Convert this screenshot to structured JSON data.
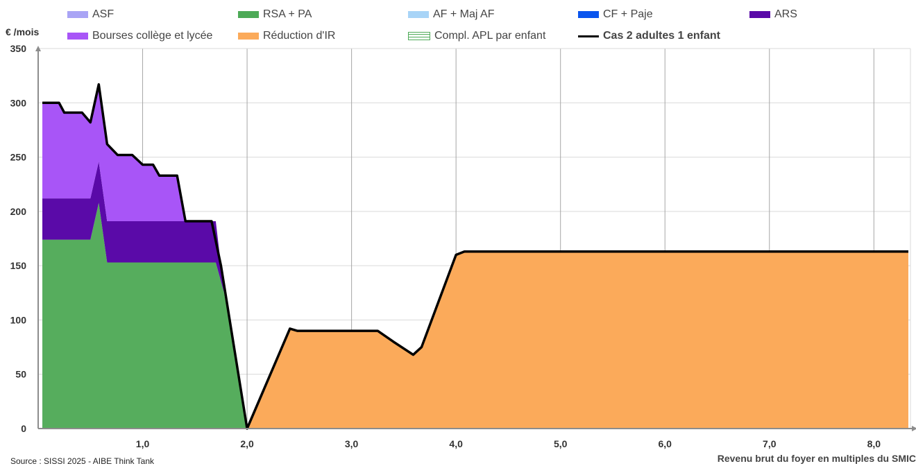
{
  "chart_data": {
    "type": "area",
    "ylabel": "€ /mois",
    "xlabel": "Revenu brut du foyer en multiples du SMIC",
    "source": "Source : SISSI 2025 - AIBE Think Tank",
    "ylim": [
      0,
      350
    ],
    "xlim": [
      0,
      8.35
    ],
    "y_ticks": [
      "0",
      "50",
      "100",
      "150",
      "200",
      "250",
      "300",
      "350"
    ],
    "x_ticks": [
      "1,0",
      "2,0",
      "3,0",
      "4,0",
      "5,0",
      "6,0",
      "7,0",
      "8,0"
    ],
    "grid": true,
    "legend_position": "top",
    "legend": [
      {
        "name": "ASF",
        "color": "#a9a4f5",
        "style": "swatch"
      },
      {
        "name": "RSA + PA",
        "color": "#4daa57",
        "style": "swatch"
      },
      {
        "name": "AF + Maj AF",
        "color": "#a8d4f7",
        "style": "swatch"
      },
      {
        "name": "CF + Paje",
        "color": "#0a55ee",
        "style": "swatch"
      },
      {
        "name": "ARS",
        "color": "#5a0aa8",
        "style": "swatch"
      },
      {
        "name": "Bourses collège et lycée",
        "color": "#a855f7",
        "style": "swatch"
      },
      {
        "name": "Réduction d'IR",
        "color": "#fbaa5a",
        "style": "swatch"
      },
      {
        "name": "Compl. APL par enfant",
        "color": "#4daa57",
        "style": "pattern"
      },
      {
        "name": "Cas 2 adultes 1 enfant",
        "color": "#000000",
        "style": "line"
      }
    ],
    "series": [
      {
        "name": "RSA + PA",
        "color": "#56ad5d",
        "points": [
          [
            0.04,
            174
          ],
          [
            0.5,
            174
          ],
          [
            0.58,
            208
          ],
          [
            0.66,
            153
          ],
          [
            1.7,
            153
          ],
          [
            1.78,
            125
          ],
          [
            2.0,
            0
          ]
        ]
      },
      {
        "name": "ARS",
        "color": "#5a0aa8",
        "points": [
          [
            0.04,
            212
          ],
          [
            0.5,
            212
          ],
          [
            0.58,
            246
          ],
          [
            0.66,
            191
          ],
          [
            1.7,
            191
          ],
          [
            1.75,
            150
          ],
          [
            1.78,
            125
          ],
          [
            1.7,
            153
          ],
          [
            0.66,
            153
          ],
          [
            0.58,
            208
          ],
          [
            0.5,
            174
          ],
          [
            0.04,
            174
          ]
        ]
      },
      {
        "name": "Bourses collège et lycée",
        "color": "#a855f7",
        "points": [
          [
            0.04,
            300
          ],
          [
            0.2,
            300
          ],
          [
            0.25,
            291
          ],
          [
            0.42,
            291
          ],
          [
            0.5,
            282
          ],
          [
            0.58,
            317
          ],
          [
            0.66,
            262
          ],
          [
            0.76,
            252
          ],
          [
            0.9,
            252
          ],
          [
            1.0,
            243
          ],
          [
            1.1,
            243
          ],
          [
            1.16,
            233
          ],
          [
            1.33,
            233
          ],
          [
            1.41,
            191
          ],
          [
            1.66,
            191
          ],
          [
            0.66,
            191
          ],
          [
            0.58,
            246
          ],
          [
            0.5,
            212
          ],
          [
            0.04,
            212
          ]
        ]
      },
      {
        "name": "Réduction d'IR",
        "color": "#fbaa5a",
        "points": [
          [
            2.0,
            0
          ],
          [
            2.41,
            92
          ],
          [
            2.48,
            90
          ],
          [
            3.25,
            90
          ],
          [
            3.4,
            80
          ],
          [
            3.59,
            68
          ],
          [
            3.67,
            75
          ],
          [
            4.0,
            160
          ],
          [
            4.08,
            163
          ],
          [
            8.33,
            163
          ],
          [
            8.33,
            0
          ]
        ]
      }
    ],
    "total_line": {
      "name": "Cas 2 adultes 1 enfant",
      "color": "#000000",
      "points": [
        [
          0.04,
          300
        ],
        [
          0.2,
          300
        ],
        [
          0.25,
          291
        ],
        [
          0.42,
          291
        ],
        [
          0.5,
          282
        ],
        [
          0.58,
          317
        ],
        [
          0.66,
          262
        ],
        [
          0.76,
          252
        ],
        [
          0.9,
          252
        ],
        [
          1.0,
          243
        ],
        [
          1.1,
          243
        ],
        [
          1.16,
          233
        ],
        [
          1.33,
          233
        ],
        [
          1.41,
          191
        ],
        [
          1.66,
          191
        ],
        [
          1.75,
          150
        ],
        [
          2.0,
          0
        ],
        [
          2.41,
          92
        ],
        [
          2.48,
          90
        ],
        [
          3.25,
          90
        ],
        [
          3.4,
          80
        ],
        [
          3.59,
          68
        ],
        [
          3.67,
          75
        ],
        [
          4.0,
          160
        ],
        [
          4.08,
          163
        ],
        [
          8.33,
          163
        ]
      ]
    }
  }
}
